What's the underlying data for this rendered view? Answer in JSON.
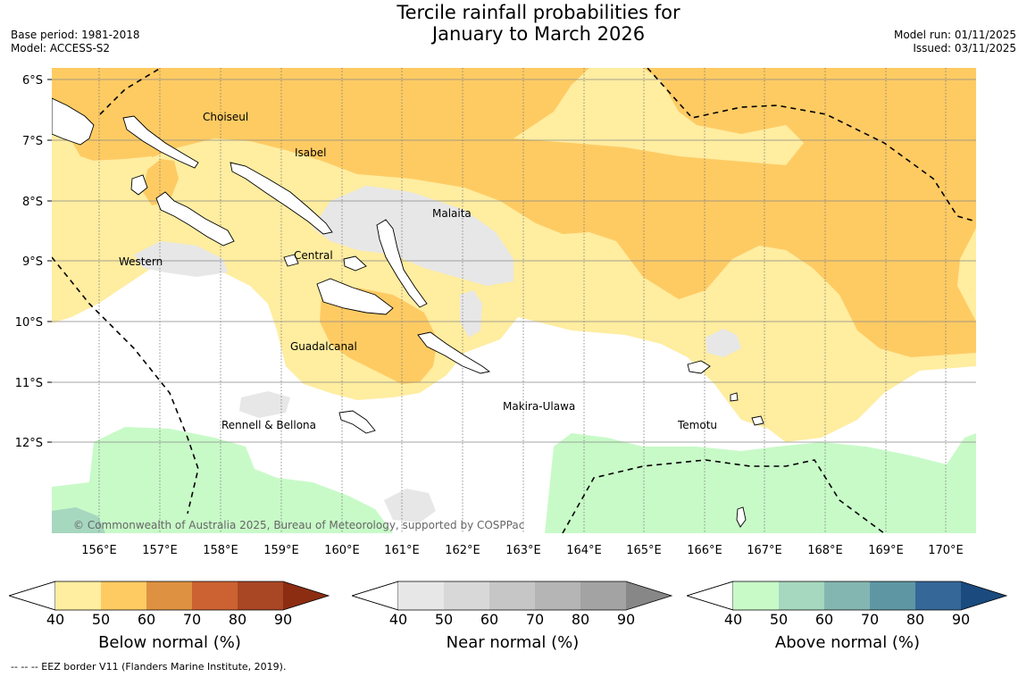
{
  "title": {
    "line1": "Tercile rainfall probabilities for",
    "line2": "January to March 2026"
  },
  "meta_left": {
    "base_period": "Base period: 1981-2018",
    "model": "Model: ACCESS-S2"
  },
  "meta_right": {
    "model_run": "Model run: 01/11/2025",
    "issued": "Issued: 03/11/2025"
  },
  "map": {
    "lat_labels": [
      "6°S",
      "7°S",
      "8°S",
      "9°S",
      "10°S",
      "11°S",
      "12°S"
    ],
    "lon_labels": [
      "156°E",
      "157°E",
      "158°E",
      "159°E",
      "160°E",
      "161°E",
      "162°E",
      "163°E",
      "164°E",
      "165°E",
      "166°E",
      "167°E",
      "168°E",
      "169°E",
      "170°E"
    ],
    "places": {
      "choiseul": "Choiseul",
      "isabel": "Isabel",
      "malaita": "Malaita",
      "western": "Western",
      "central": "Central",
      "guadalcanal": "Guadalcanal",
      "makira": "Makira-Ulawa",
      "rennell": "Rennell & Bellona",
      "temotu": "Temotu"
    },
    "copyright": "© Commonwealth of Australia 2025, Bureau of Meteorology, supported by COSPPac"
  },
  "colorbars": {
    "below": {
      "title": "Below normal (%)",
      "ticks": [
        "40",
        "50",
        "60",
        "70",
        "80",
        "90"
      ],
      "colors": [
        "#ffeda0",
        "#fecb63",
        "#de9141",
        "#cc6232",
        "#a94624",
        "#8c2d12"
      ]
    },
    "near": {
      "title": "Near normal (%)",
      "ticks": [
        "40",
        "50",
        "60",
        "70",
        "80",
        "90"
      ],
      "colors": [
        "#e7e7e7",
        "#d8d8d8",
        "#c6c6c6",
        "#b5b5b5",
        "#a3a3a3",
        "#878787"
      ]
    },
    "above": {
      "title": "Above normal (%)",
      "ticks": [
        "40",
        "50",
        "60",
        "70",
        "80",
        "90"
      ],
      "colors": [
        "#c8fac8",
        "#a6d7bf",
        "#84b6b1",
        "#5e97a3",
        "#356798",
        "#1a4a7e"
      ]
    }
  },
  "footer": "--  --  -- EEZ border V11 (Flanders Marine Institute, 2019)."
}
